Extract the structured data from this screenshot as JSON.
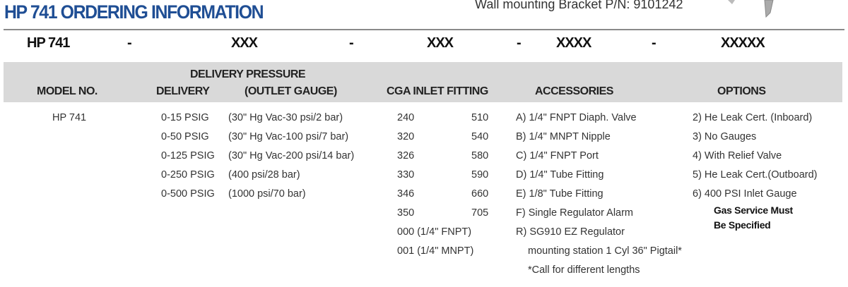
{
  "title": "HP 741 ORDERING INFORMATION",
  "bracket_note": "Wall mounting Bracket P/N: 9101242",
  "part_code": [
    "HP 741",
    "-",
    "XXX",
    "-",
    "XXX",
    "-",
    "XXXX",
    "-",
    "XXXXX"
  ],
  "headers": {
    "group": "DELIVERY PRESSURE",
    "model": "MODEL NO.",
    "delivery": "DELIVERY",
    "gauge": "(OUTLET GAUGE)",
    "cga": "CGA INLET FITTING",
    "accessories": "ACCESSORIES",
    "options": "OPTIONS"
  },
  "model": "HP 741",
  "delivery": [
    "0-15 PSIG",
    "0-50 PSIG",
    "0-125 PSIG",
    "0-250 PSIG",
    "0-500 PSIG"
  ],
  "gauge": [
    "(30\" Hg Vac-30 psi/2 bar)",
    "(30\" Hg Vac-100 psi/7 bar)",
    "(30\" Hg Vac-200 psi/14 bar)",
    "(400 psi/28 bar)",
    "(1000 psi/70 bar)"
  ],
  "cga_left": [
    "240",
    "320",
    "326",
    "330",
    "346",
    "350",
    "000 (1/4\" FNPT)",
    "001 (1/4\" MNPT)"
  ],
  "cga_right": [
    "510",
    "540",
    "580",
    "590",
    "660",
    "705"
  ],
  "accessories": [
    "A) 1/4\" FNPT Diaph. Valve",
    "B) 1/4\" MNPT Nipple",
    "C) 1/4\" FNPT Port",
    "D) 1/4\" Tube Fitting",
    "E) 1/8\" Tube Fitting",
    "F) Single Regulator Alarm",
    "R) SG910 EZ Regulator",
    "mounting station 1 Cyl 36\" Pigtail*",
    "*Call for different lengths"
  ],
  "options": [
    "2) He Leak Cert. (Inboard)",
    "3) No Gauges",
    "4) With Relief Valve",
    "5) He Leak Cert.(Outboard)",
    "6) 400 PSI Inlet Gauge"
  ],
  "options_note": [
    "Gas Service Must",
    "Be Specified"
  ],
  "colors": {
    "title": "#1f4e94",
    "header_band": "#d9d9d9"
  }
}
